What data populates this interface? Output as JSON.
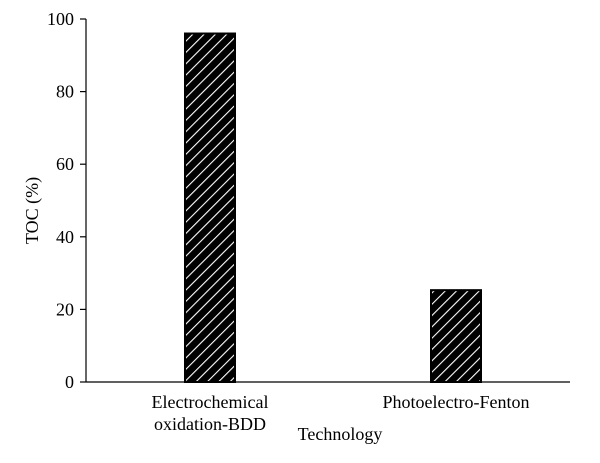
{
  "chart_data": {
    "type": "bar",
    "categories": [
      "Electrochemical oxidation-BDD",
      "Photoelectro-Fenton"
    ],
    "category_lines": [
      [
        "Electrochemical",
        "oxidation-BDD"
      ],
      [
        "Photoelectro-Fenton"
      ]
    ],
    "values": [
      96,
      25.3
    ],
    "xlabel": "Technology",
    "ylabel": "TOC (%)",
    "ylim": [
      0,
      100
    ],
    "yticks": [
      "0",
      "20",
      "40",
      "60",
      "80",
      "100"
    ],
    "grid": false,
    "bar_fill": "diagonal-hatch",
    "colors": {
      "bar_fill": "#000000",
      "hatch": "#ffffff",
      "axis": "#000000"
    }
  }
}
